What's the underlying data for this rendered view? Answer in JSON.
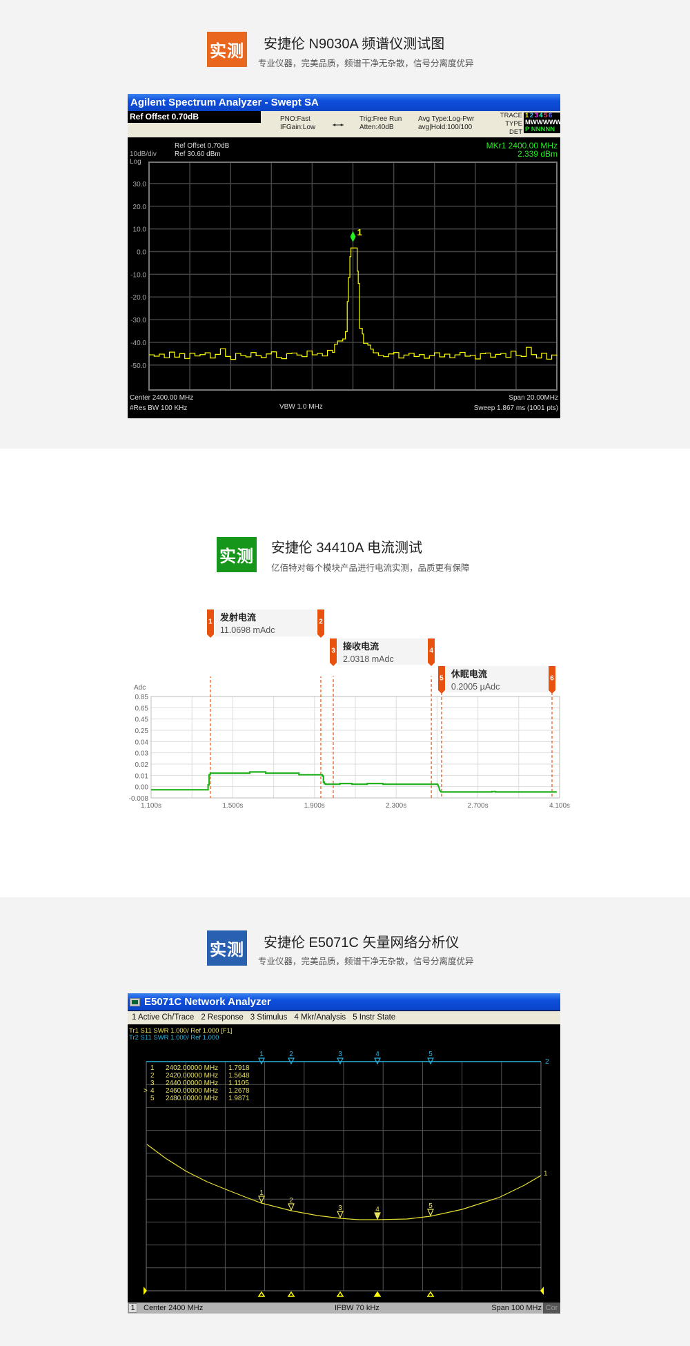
{
  "sections": [
    {
      "badge": "实测",
      "badge_color": "#e8661e",
      "title": "安捷伦 N9030A 频谱仪测试图",
      "subtitle": "专业仪器，完美品质，频谱干净无杂散，信号分离度优异"
    },
    {
      "badge": "实测",
      "badge_color": "#16961a",
      "title": "安捷伦 34410A 电流测试",
      "subtitle": "亿佰特对每个模块产品进行电流实测，品质更有保障"
    },
    {
      "badge": "实测",
      "badge_color": "#2a60b0",
      "title": "安捷伦 E5071C 矢量网络分析仪",
      "subtitle": "专业仪器，完美品质，频谱干净无杂散，信号分离度优异"
    }
  ],
  "spectrum": {
    "window_title": "Agilent Spectrum Analyzer - Swept SA",
    "ref_offset_box": "Ref Offset 0.70dB",
    "pno": "PNO:Fast",
    "ifgain": "IFGain:Low",
    "trig": "Trig:Free Run",
    "atten": "Atten:40dB",
    "avg_type": "Avg Type:Log-Pwr",
    "avg_hold": "avg|Hold:100/100",
    "trace_label": "TRACE",
    "type_label": "TYPE",
    "det_label": "DET",
    "trace_numbers": [
      "1",
      "2",
      "3",
      "4",
      "5",
      "6"
    ],
    "trace_colors": [
      "#ffff00",
      "#33ccff",
      "#ff33ff",
      "#33ffcc",
      "#ff4466",
      "#6666ff"
    ],
    "type_values": "MWWWWW",
    "det_values": "P NNNNN",
    "ref_offset": "Ref Offset 0.70dB",
    "ref_level": "Ref 30.60 dBm",
    "scale": "10dB/div",
    "scale_type": "Log",
    "marker_freq": "MKr1 2400.00 MHz",
    "marker_level": "2.339 dBm",
    "marker_label": "1",
    "center": "Center 2400.00 MHz",
    "span": "Span 20.00MHz",
    "res_bw": "#Res BW 100 KHz",
    "vbw": "VBW 1.0 MHz",
    "sweep": "Sweep 1.867 ms (1001 pts)"
  },
  "current": {
    "y_unit": "Adc",
    "callouts": [
      {
        "m1": "1",
        "m2": "2",
        "title": "发射电流",
        "value": "11.0698 mAdc",
        "t1": 1.39,
        "t2": 1.931
      },
      {
        "m1": "3",
        "m2": "4",
        "title": "接收电流",
        "value": "2.0318 mAdc",
        "t1": 1.992,
        "t2": 2.472
      },
      {
        "m1": "5",
        "m2": "6",
        "title": "休眠电流",
        "value": "0.2005 µAdc",
        "t1": 2.522,
        "t2": 3.97
      }
    ]
  },
  "vna": {
    "window_title": "E5071C Network Analyzer",
    "menu": [
      "1 Active Ch/Trace",
      "2 Response",
      "3 Stimulus",
      "4 Mkr/Analysis",
      "5 Instr State"
    ],
    "tr1": "Tr1 S11 SWR 1.000/ Ref 1.000 [F1]",
    "tr2": "Tr2 S11 SWR 1.000/ Ref 1.000",
    "tr1_color": "#e8e060",
    "tr2_color": "#28b4e0",
    "trace1_label": "1",
    "trace2_label": "2",
    "markers": [
      {
        "n": "1",
        "freq": "2402.00000 MHz",
        "value": "1.7918",
        "active": false
      },
      {
        "n": "2",
        "freq": "2420.00000 MHz",
        "value": "1.5648",
        "active": false
      },
      {
        "n": "3",
        "freq": "2440.00000 MHz",
        "value": "1.1105",
        "active": false
      },
      {
        "n": "4",
        "freq": "2460.00000 MHz",
        "value": "1.2678",
        "active": true
      },
      {
        "n": "5",
        "freq": "2480.00000 MHz",
        "value": "1.9871",
        "active": false
      }
    ],
    "active_marker_symbol": ">",
    "channel": "1",
    "center": "Center 2400 MHz",
    "ifbw": "IFBW 70 kHz",
    "span": "Span 100 MHz",
    "cor": "Cor"
  },
  "chart_data": [
    {
      "type": "line",
      "xlabel": "",
      "ylabel": "",
      "xlim": [
        2390,
        2410
      ],
      "ylim": [
        -61,
        39.4
      ],
      "yticks": [
        30,
        20,
        10,
        0,
        -10,
        -20,
        -30,
        -40,
        -50
      ],
      "ytick_labels": [
        "30.0",
        "20.0",
        "10.0",
        "0.0",
        "-10.0",
        "-20.0",
        "-30.0",
        "-40.0",
        "-50.0"
      ],
      "grid": true,
      "trace_color": "#ffff00",
      "marker": {
        "x": 2400.0,
        "y": 2.339,
        "label": "1"
      },
      "points": [
        [
          2390.0,
          -45.5
        ],
        [
          2390.25,
          -46.1
        ],
        [
          2390.5,
          -45.2
        ],
        [
          2390.75,
          -46.8
        ],
        [
          2391.0,
          -44.3
        ],
        [
          2391.25,
          -46.5
        ],
        [
          2391.5,
          -45.0
        ],
        [
          2391.75,
          -47.1
        ],
        [
          2392.0,
          -44.8
        ],
        [
          2392.25,
          -46.0
        ],
        [
          2392.5,
          -45.4
        ],
        [
          2392.75,
          -44.6
        ],
        [
          2393.0,
          -46.9
        ],
        [
          2393.25,
          -45.3
        ],
        [
          2393.5,
          -42.8
        ],
        [
          2393.75,
          -46.2
        ],
        [
          2394.0,
          -47.5
        ],
        [
          2394.25,
          -44.9
        ],
        [
          2394.5,
          -45.8
        ],
        [
          2394.75,
          -46.4
        ],
        [
          2395.0,
          -44.5
        ],
        [
          2395.25,
          -45.9
        ],
        [
          2395.5,
          -46.7
        ],
        [
          2395.75,
          -45.1
        ],
        [
          2396.0,
          -44.2
        ],
        [
          2396.25,
          -46.6
        ],
        [
          2396.5,
          -47.2
        ],
        [
          2396.75,
          -45.0
        ],
        [
          2397.0,
          -44.7
        ],
        [
          2397.25,
          -45.6
        ],
        [
          2397.5,
          -46.3
        ],
        [
          2397.75,
          -43.8
        ],
        [
          2398.0,
          -45.5
        ],
        [
          2398.25,
          -44.9
        ],
        [
          2398.5,
          -46.0
        ],
        [
          2398.75,
          -43.5
        ],
        [
          2399.0,
          -44.4
        ],
        [
          2399.1,
          -40.8
        ],
        [
          2399.25,
          -39.4
        ],
        [
          2399.5,
          -38.5
        ],
        [
          2399.63,
          -35.3
        ],
        [
          2399.72,
          -22.0
        ],
        [
          2399.78,
          -11.4
        ],
        [
          2399.85,
          -2.2
        ],
        [
          2399.9,
          1.6
        ],
        [
          2400.1,
          1.6
        ],
        [
          2400.21,
          -8.6
        ],
        [
          2400.26,
          -14.0
        ],
        [
          2400.32,
          -33.8
        ],
        [
          2400.46,
          -36.3
        ],
        [
          2400.52,
          -40.4
        ],
        [
          2400.73,
          -41.2
        ],
        [
          2400.87,
          -43.0
        ],
        [
          2401.0,
          -44.6
        ],
        [
          2401.25,
          -45.8
        ],
        [
          2401.5,
          -46.3
        ],
        [
          2401.75,
          -45.1
        ],
        [
          2402.0,
          -44.5
        ],
        [
          2402.25,
          -46.9
        ],
        [
          2402.5,
          -45.6
        ],
        [
          2402.75,
          -44.8
        ],
        [
          2403.0,
          -46.2
        ],
        [
          2403.25,
          -45.4
        ],
        [
          2403.5,
          -47.0
        ],
        [
          2403.75,
          -45.9
        ],
        [
          2404.0,
          -44.6
        ],
        [
          2404.25,
          -46.4
        ],
        [
          2404.5,
          -45.2
        ],
        [
          2404.75,
          -46.8
        ],
        [
          2405.0,
          -45.5
        ],
        [
          2405.25,
          -44.4
        ],
        [
          2405.5,
          -46.1
        ],
        [
          2405.75,
          -45.7
        ],
        [
          2406.0,
          -47.3
        ],
        [
          2406.25,
          -45.0
        ],
        [
          2406.5,
          -44.7
        ],
        [
          2406.75,
          -46.5
        ],
        [
          2407.0,
          -45.3
        ],
        [
          2407.25,
          -44.9
        ],
        [
          2407.5,
          -46.6
        ],
        [
          2407.75,
          -43.9
        ],
        [
          2408.0,
          -45.8
        ],
        [
          2408.25,
          -46.2
        ],
        [
          2408.5,
          -42.2
        ],
        [
          2408.75,
          -45.4
        ],
        [
          2409.0,
          -46.9
        ],
        [
          2409.25,
          -44.8
        ],
        [
          2409.5,
          -47.4
        ],
        [
          2409.75,
          -45.6
        ],
        [
          2410.0,
          -45.9
        ]
      ]
    },
    {
      "type": "line",
      "ylabel": "Adc",
      "yticks": [
        0.85,
        0.65,
        0.45,
        0.25,
        0.04,
        0.03,
        0.02,
        0.01,
        0.0,
        -0.008
      ],
      "ytick_labels": [
        "0.85",
        "0.65",
        "0.45",
        "0.25",
        "0.04",
        "0.03",
        "0.02",
        "0.01",
        "0.00",
        "-0.008"
      ],
      "xticks": [
        1.1,
        1.5,
        1.9,
        2.3,
        2.7,
        4.1
      ],
      "xtick_labels": [
        "1.100s",
        "1.500s",
        "1.900s",
        "2.300s",
        "2.700s",
        "4.100s"
      ],
      "grid": true,
      "trace_color": "#22b21e",
      "marker_color": "#e8520e",
      "points": [
        [
          1.1,
          -0.0022
        ],
        [
          1.379,
          -0.0022
        ],
        [
          1.379,
          0.0016
        ],
        [
          1.384,
          0.0016
        ],
        [
          1.384,
          0.0106
        ],
        [
          1.39,
          0.0106
        ],
        [
          1.39,
          0.012
        ],
        [
          1.583,
          0.012
        ],
        [
          1.583,
          0.013
        ],
        [
          1.661,
          0.013
        ],
        [
          1.661,
          0.012
        ],
        [
          1.824,
          0.012
        ],
        [
          1.824,
          0.0106
        ],
        [
          1.939,
          0.0106
        ],
        [
          1.939,
          0.0094
        ],
        [
          1.944,
          0.0094
        ],
        [
          1.944,
          0.004
        ],
        [
          1.948,
          0.004
        ],
        [
          1.948,
          0.0026
        ],
        [
          1.954,
          0.0026
        ],
        [
          1.954,
          0.0022
        ],
        [
          2.024,
          0.0022
        ],
        [
          2.024,
          0.0028
        ],
        [
          2.083,
          0.0028
        ],
        [
          2.083,
          0.0022
        ],
        [
          2.158,
          0.0022
        ],
        [
          2.158,
          0.0028
        ],
        [
          2.235,
          0.0028
        ],
        [
          2.235,
          0.0022
        ],
        [
          2.503,
          0.0022
        ],
        [
          2.508,
          0.0
        ],
        [
          2.514,
          -0.0028
        ],
        [
          2.52,
          -0.0038
        ],
        [
          2.94,
          -0.0038
        ],
        [
          2.94,
          -0.0035
        ],
        [
          3.0,
          -0.0035
        ],
        [
          3.0,
          -0.0038
        ],
        [
          4.05,
          -0.0038
        ]
      ]
    }
  ]
}
